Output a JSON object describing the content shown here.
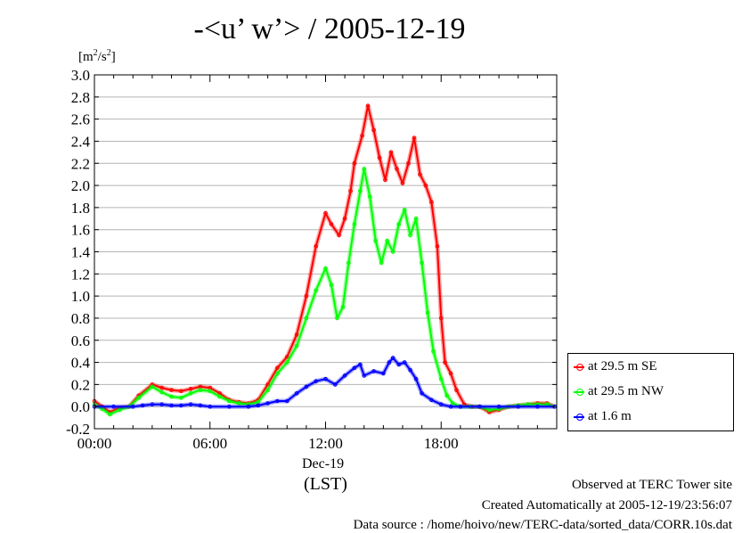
{
  "title": "-<u’ w’> / 2005-12-19",
  "units_prefix": "[m",
  "units_sup1": "2",
  "units_mid": "/s",
  "units_sup2": "2",
  "units_suffix": "]",
  "date_label": "Dec-19",
  "timezone_label": "(LST)",
  "footer": {
    "line1": "Observed at TERC Tower site",
    "line2": "Created Automatically at 2005-12-19/23:56:07",
    "line3": "Data source : /home/hoivo/new/TERC-data/sorted_data/CORR.10s.dat"
  },
  "chart_data": {
    "type": "line",
    "xlabel": "",
    "ylabel": "[m2/s2]",
    "xlim": [
      0,
      24
    ],
    "ylim": [
      -0.2,
      3.0
    ],
    "grid": true,
    "legend_position": "bottom-right outside plot",
    "x_ticks": [
      "00:00",
      "06:00",
      "12:00",
      "18:00"
    ],
    "x_tick_values": [
      0,
      6,
      12,
      18
    ],
    "y_ticks": [
      "-0.2",
      "0.0",
      "0.2",
      "0.4",
      "0.6",
      "0.8",
      "1.0",
      "1.2",
      "1.4",
      "1.6",
      "1.8",
      "2.0",
      "2.2",
      "2.4",
      "2.6",
      "2.8",
      "3.0"
    ],
    "series": [
      {
        "name": "at 29.5 m SE",
        "color": "#ff0000",
        "points": [
          [
            0,
            0.05
          ],
          [
            0.4,
            0.0
          ],
          [
            0.8,
            -0.05
          ],
          [
            1.3,
            -0.01
          ],
          [
            1.8,
            0.0
          ],
          [
            2.3,
            0.1
          ],
          [
            3.0,
            0.2
          ],
          [
            3.5,
            0.17
          ],
          [
            4.0,
            0.15
          ],
          [
            4.5,
            0.14
          ],
          [
            5.0,
            0.16
          ],
          [
            5.5,
            0.18
          ],
          [
            6.0,
            0.17
          ],
          [
            6.5,
            0.12
          ],
          [
            7.0,
            0.06
          ],
          [
            7.5,
            0.04
          ],
          [
            8.0,
            0.03
          ],
          [
            8.5,
            0.06
          ],
          [
            9.0,
            0.2
          ],
          [
            9.5,
            0.35
          ],
          [
            10.0,
            0.45
          ],
          [
            10.5,
            0.65
          ],
          [
            11.0,
            1.0
          ],
          [
            11.5,
            1.45
          ],
          [
            12.0,
            1.75
          ],
          [
            12.3,
            1.65
          ],
          [
            12.7,
            1.55
          ],
          [
            13.0,
            1.7
          ],
          [
            13.3,
            1.95
          ],
          [
            13.5,
            2.2
          ],
          [
            13.9,
            2.45
          ],
          [
            14.2,
            2.72
          ],
          [
            14.5,
            2.5
          ],
          [
            14.8,
            2.25
          ],
          [
            15.1,
            2.05
          ],
          [
            15.4,
            2.3
          ],
          [
            15.7,
            2.15
          ],
          [
            16.0,
            2.02
          ],
          [
            16.3,
            2.2
          ],
          [
            16.6,
            2.43
          ],
          [
            16.9,
            2.1
          ],
          [
            17.2,
            2.0
          ],
          [
            17.5,
            1.85
          ],
          [
            17.8,
            1.45
          ],
          [
            18.0,
            0.8
          ],
          [
            18.2,
            0.4
          ],
          [
            18.5,
            0.3
          ],
          [
            18.8,
            0.15
          ],
          [
            19.2,
            0.02
          ],
          [
            19.6,
            0.0
          ],
          [
            20.0,
            0.0
          ],
          [
            20.5,
            -0.05
          ],
          [
            21.0,
            -0.03
          ],
          [
            21.5,
            0.0
          ],
          [
            22.0,
            0.01
          ],
          [
            22.5,
            0.02
          ],
          [
            23.0,
            0.03
          ],
          [
            23.5,
            0.03
          ],
          [
            23.9,
            0.0
          ]
        ]
      },
      {
        "name": "at 29.5 m NW",
        "color": "#00ff00",
        "points": [
          [
            0,
            0.02
          ],
          [
            0.4,
            -0.02
          ],
          [
            0.8,
            -0.07
          ],
          [
            1.3,
            -0.03
          ],
          [
            1.8,
            0.0
          ],
          [
            2.3,
            0.08
          ],
          [
            3.0,
            0.18
          ],
          [
            3.5,
            0.13
          ],
          [
            4.0,
            0.09
          ],
          [
            4.5,
            0.08
          ],
          [
            5.0,
            0.12
          ],
          [
            5.5,
            0.15
          ],
          [
            6.0,
            0.14
          ],
          [
            6.5,
            0.09
          ],
          [
            7.0,
            0.05
          ],
          [
            7.5,
            0.03
          ],
          [
            8.0,
            0.02
          ],
          [
            8.5,
            0.04
          ],
          [
            9.0,
            0.15
          ],
          [
            9.5,
            0.3
          ],
          [
            10.0,
            0.4
          ],
          [
            10.5,
            0.55
          ],
          [
            11.0,
            0.8
          ],
          [
            11.5,
            1.05
          ],
          [
            12.0,
            1.25
          ],
          [
            12.3,
            1.1
          ],
          [
            12.6,
            0.8
          ],
          [
            12.9,
            0.9
          ],
          [
            13.2,
            1.3
          ],
          [
            13.5,
            1.65
          ],
          [
            13.8,
            1.95
          ],
          [
            14.0,
            2.15
          ],
          [
            14.3,
            1.9
          ],
          [
            14.6,
            1.5
          ],
          [
            14.9,
            1.3
          ],
          [
            15.2,
            1.5
          ],
          [
            15.5,
            1.4
          ],
          [
            15.8,
            1.65
          ],
          [
            16.1,
            1.78
          ],
          [
            16.4,
            1.55
          ],
          [
            16.7,
            1.7
          ],
          [
            17.0,
            1.3
          ],
          [
            17.3,
            0.85
          ],
          [
            17.6,
            0.5
          ],
          [
            18.0,
            0.25
          ],
          [
            18.3,
            0.1
          ],
          [
            18.6,
            0.03
          ],
          [
            19.0,
            0.0
          ],
          [
            19.5,
            0.0
          ],
          [
            20.0,
            0.0
          ],
          [
            20.5,
            -0.03
          ],
          [
            21.0,
            -0.02
          ],
          [
            21.5,
            0.0
          ],
          [
            22.0,
            0.01
          ],
          [
            22.5,
            0.02
          ],
          [
            23.0,
            0.02
          ],
          [
            23.5,
            0.02
          ],
          [
            23.9,
            0.0
          ]
        ]
      },
      {
        "name": "at 1.6 m",
        "color": "#0000ff",
        "points": [
          [
            0,
            0.0
          ],
          [
            1.0,
            0.0
          ],
          [
            2.0,
            0.0
          ],
          [
            2.5,
            0.01
          ],
          [
            3.0,
            0.02
          ],
          [
            3.5,
            0.02
          ],
          [
            4.0,
            0.01
          ],
          [
            4.5,
            0.01
          ],
          [
            5.0,
            0.02
          ],
          [
            5.5,
            0.01
          ],
          [
            6.0,
            0.0
          ],
          [
            7.0,
            0.0
          ],
          [
            8.0,
            0.0
          ],
          [
            8.5,
            0.01
          ],
          [
            9.0,
            0.03
          ],
          [
            9.5,
            0.05
          ],
          [
            10.0,
            0.05
          ],
          [
            10.5,
            0.12
          ],
          [
            11.0,
            0.18
          ],
          [
            11.5,
            0.23
          ],
          [
            12.0,
            0.25
          ],
          [
            12.5,
            0.2
          ],
          [
            13.0,
            0.28
          ],
          [
            13.5,
            0.35
          ],
          [
            13.8,
            0.38
          ],
          [
            14.0,
            0.28
          ],
          [
            14.5,
            0.32
          ],
          [
            15.0,
            0.3
          ],
          [
            15.3,
            0.4
          ],
          [
            15.5,
            0.44
          ],
          [
            15.8,
            0.38
          ],
          [
            16.1,
            0.4
          ],
          [
            16.4,
            0.33
          ],
          [
            16.7,
            0.25
          ],
          [
            17.0,
            0.12
          ],
          [
            17.5,
            0.06
          ],
          [
            18.0,
            0.02
          ],
          [
            18.5,
            0.0
          ],
          [
            19.0,
            0.0
          ],
          [
            20.0,
            0.0
          ],
          [
            21.0,
            0.0
          ],
          [
            22.0,
            0.0
          ],
          [
            23.0,
            0.0
          ],
          [
            23.9,
            0.0
          ]
        ]
      }
    ]
  }
}
